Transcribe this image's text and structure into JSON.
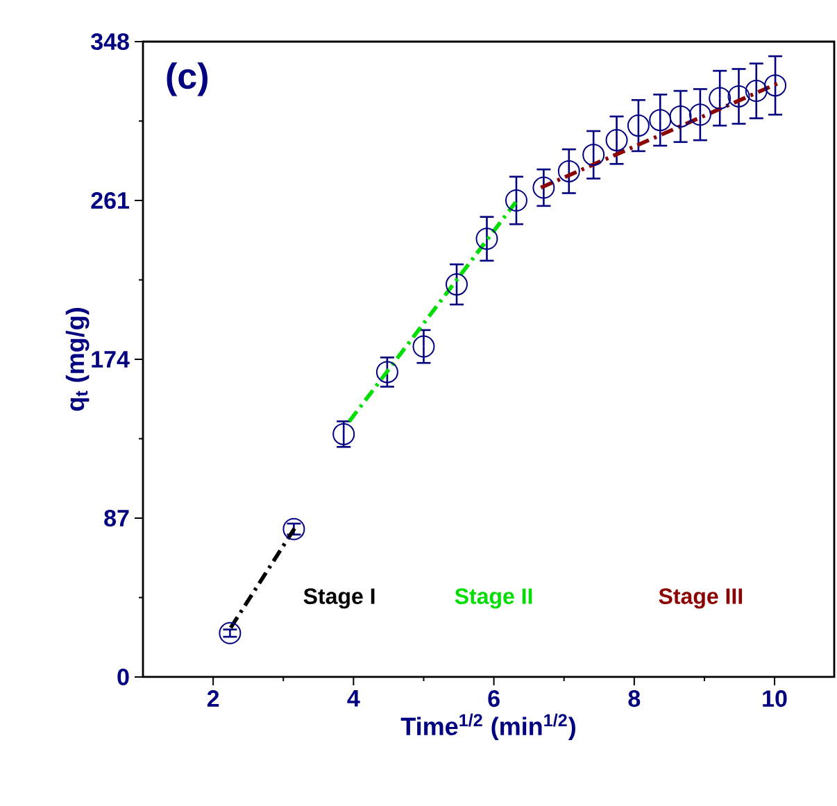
{
  "chart_data": {
    "type": "scatter",
    "xlabel": "Time$^{1/2}$ (min$^{1/2}$)",
    "ylabel": "q$_{t}$ (mg/g)",
    "annotations": [
      "(c)"
    ],
    "xlim": [
      1,
      10.85
    ],
    "ylim": [
      0,
      348
    ],
    "xticks": [
      2,
      4,
      6,
      8,
      10
    ],
    "yticks": [
      0,
      87,
      174,
      261,
      348
    ],
    "grid": false,
    "series": [
      {
        "marker": "circle",
        "color": "#000080",
        "x": [
          2.24,
          3.15,
          3.86,
          4.48,
          5.0,
          5.47,
          5.9,
          6.32,
          6.71,
          7.07,
          7.42,
          7.75,
          8.06,
          8.37,
          8.66,
          8.94,
          9.22,
          9.49,
          9.74,
          10.01
        ],
        "values": [
          24,
          81,
          133,
          167,
          181,
          215,
          240,
          261,
          268,
          277,
          286,
          294,
          302,
          305,
          307,
          308,
          317,
          318,
          321,
          324
        ],
        "errors": [
          2,
          3,
          7,
          8,
          9,
          11,
          12,
          13,
          10,
          12,
          13,
          13,
          14,
          14,
          14,
          14,
          15,
          15,
          15,
          16
        ]
      },
      {
        "type": "line",
        "name": "Stage I",
        "color": "#000000",
        "line_style": "dashed",
        "marker": "none",
        "x": [
          2.25,
          3.17
        ],
        "values": [
          27,
          82
        ]
      },
      {
        "type": "line",
        "name": "Stage II",
        "color": "#00dd00",
        "line_style": "dashed",
        "marker": "none",
        "x": [
          3.94,
          6.31
        ],
        "values": [
          140,
          260
        ]
      },
      {
        "type": "line",
        "name": "Stage III",
        "color": "#8b0000",
        "line_style": "dashed",
        "marker": "none",
        "x": [
          6.67,
          10.04
        ],
        "values": [
          268,
          325
        ]
      }
    ]
  }
}
